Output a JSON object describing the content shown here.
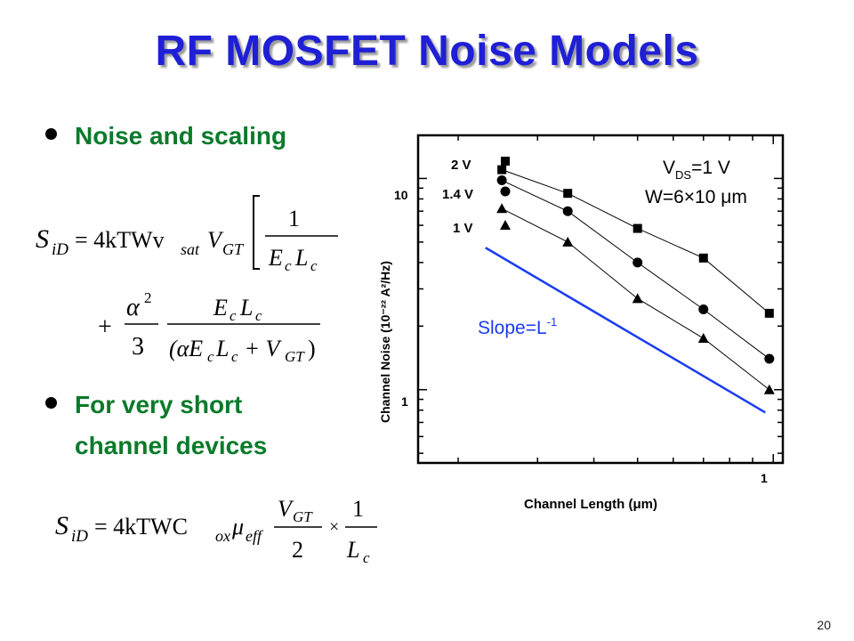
{
  "slide": {
    "title": "RF MOSFET Noise Models",
    "bullet1": "Noise and scaling",
    "bullet2_line1": "For very short",
    "bullet2_line2": "channel devices",
    "page_number": "20"
  },
  "colors": {
    "title": "#1f1fd6",
    "bullet_text": "#0a7a2a",
    "slope_line": "#1a3cf0"
  },
  "equations": {
    "eq1_lhs": "S",
    "eq1_lhs_sub": "iD",
    "eq1_rhs": "= 4kTWv",
    "eq1_rhs_sub": "sat",
    "eq1_vgt": "V",
    "eq1_vgt_sub": "GT",
    "eq1_num": "1",
    "eq1_den": "E",
    "eq1_den_c1": "c",
    "eq1_den_l": "L",
    "eq1_den_c2": "c",
    "eq2_plus": "+",
    "eq2_alpha": "α",
    "eq2_sq": "2",
    "eq2_three": "3",
    "eq2_num": "E",
    "eq2_num_c1": "c",
    "eq2_num_l": "L",
    "eq2_num_c2": "c",
    "eq2_den": "(αE",
    "eq2_den_c1": "c",
    "eq2_den_l": "L",
    "eq2_den_c2": "c",
    "eq2_den_plus": " + V",
    "eq2_den_gt": "GT",
    "eq2_den_close": ")",
    "eq3_lhs": "S",
    "eq3_lhs_sub": "iD",
    "eq3_rhs": "= 4kTWC",
    "eq3_ox": "ox",
    "eq3_mu": "μ",
    "eq3_eff": "eff",
    "eq3_vgt": "V",
    "eq3_gt": "GT",
    "eq3_two": "2",
    "eq3_times": "×",
    "eq3_one": "1",
    "eq3_l": "L",
    "eq3_c": "c"
  },
  "chart_data": {
    "type": "scatter",
    "xscale": "log",
    "yscale": "log",
    "xlabel": "Channel Length (μm)",
    "ylabel": "Channel Noise (10⁻²² A²/Hz)",
    "x_tick_labels": [
      "1"
    ],
    "y_tick_labels": [
      "1",
      "10"
    ],
    "xlim": [
      0.163,
      1.05
    ],
    "ylim": [
      0.45,
      16
    ],
    "legend_title_line1": "V",
    "legend_title_sub": "DS",
    "legend_title_val": "=1 V",
    "legend_title_line2": "W=6×10 μm",
    "series": [
      {
        "name": "2 V",
        "marker": "square",
        "x": [
          0.25,
          0.35,
          0.5,
          0.7,
          0.98
        ],
        "y": [
          11,
          8.5,
          5.8,
          4.2,
          2.3
        ]
      },
      {
        "name": "1.4 V",
        "marker": "circle",
        "x": [
          0.25,
          0.35,
          0.5,
          0.7,
          0.98
        ],
        "y": [
          9.8,
          7.0,
          4.0,
          2.4,
          1.4
        ]
      },
      {
        "name": "1 V",
        "marker": "triangle",
        "x": [
          0.25,
          0.35,
          0.5,
          0.7,
          0.98
        ],
        "y": [
          7.2,
          5.0,
          2.7,
          1.75,
          1.0
        ]
      }
    ],
    "reference_line": {
      "label": "Slope=L",
      "label_exp": "-1",
      "x": [
        0.23,
        0.96
      ],
      "y": [
        4.7,
        0.78
      ]
    }
  }
}
